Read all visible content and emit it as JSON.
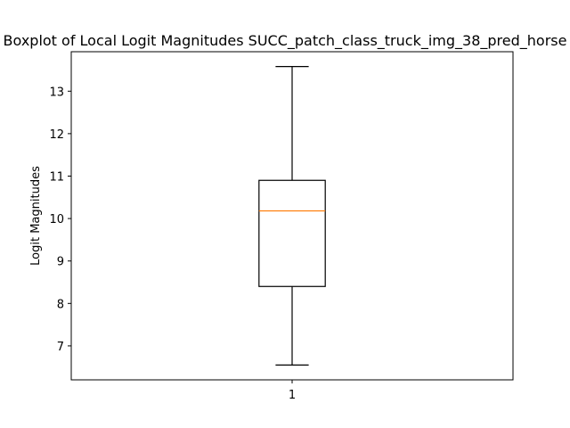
{
  "chart_data": {
    "type": "boxplot",
    "title": "Boxplot of Local Logit Magnitudes SUCC_patch_class_truck_img_38_pred_horse",
    "xlabel": "",
    "ylabel": "Logit Magnitudes",
    "categories": [
      "1"
    ],
    "boxes": [
      {
        "category": "1",
        "whisker_low": 6.55,
        "q1": 8.4,
        "median": 10.18,
        "q3": 10.9,
        "whisker_high": 13.58
      }
    ],
    "ylim": [
      6.2,
      13.93
    ],
    "yticks": [
      7,
      8,
      9,
      10,
      11,
      12,
      13
    ],
    "ytick_labels": [
      "7",
      "8",
      "9",
      "10",
      "11",
      "12",
      "13"
    ],
    "grid": false,
    "colors": {
      "box": "#000000",
      "median": "#ff7f0e",
      "whisker": "#000000"
    }
  }
}
